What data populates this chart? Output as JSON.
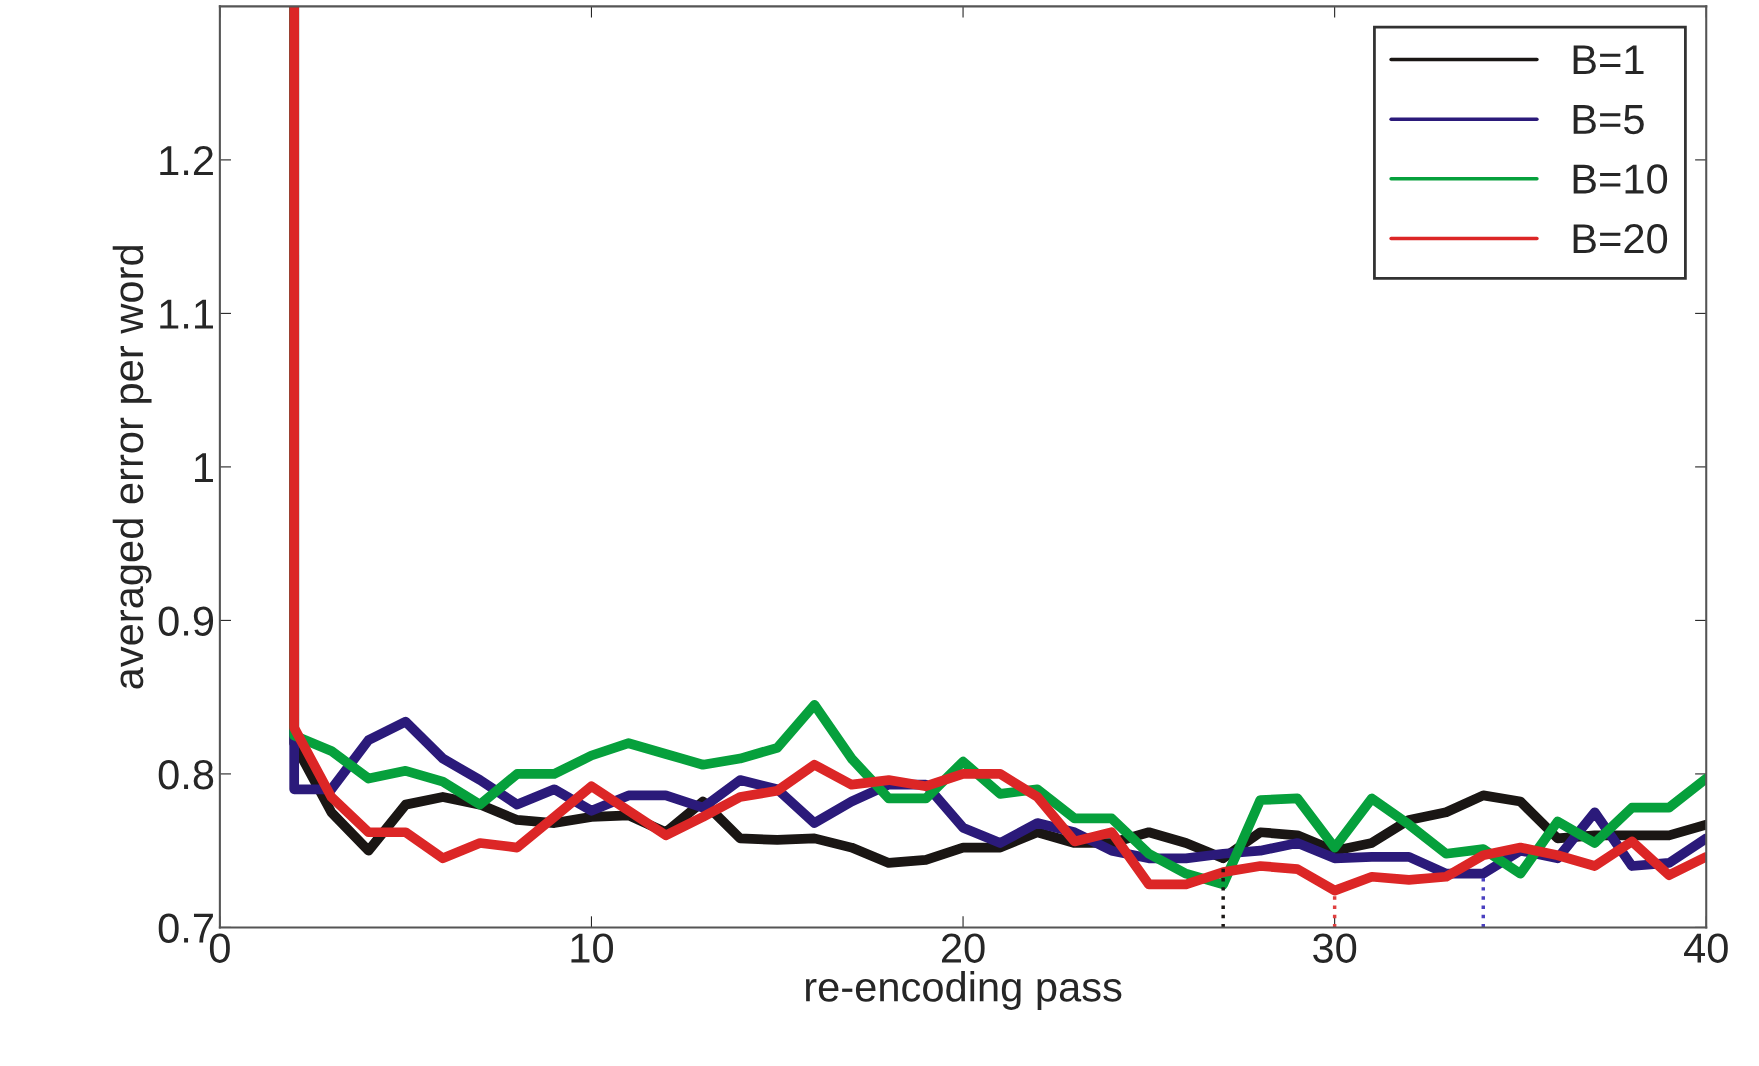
{
  "chart_data": {
    "type": "line",
    "xlabel": "re-encoding pass",
    "ylabel": "averaged error per word",
    "xlim": [
      0,
      40
    ],
    "ylim": [
      0.7,
      1.3
    ],
    "xticks": [
      0,
      10,
      20,
      30,
      40
    ],
    "yticks": [
      0.7,
      0.8,
      0.9,
      1,
      1.1,
      1.2
    ],
    "grid": false,
    "legend": "top right",
    "line_style": "solid",
    "series": [
      {
        "name": "B=1",
        "color": "#1a1614",
        "x": [
          2,
          2,
          3,
          4,
          5,
          6,
          7,
          8,
          9,
          10,
          11,
          12,
          13,
          14,
          15,
          16,
          17,
          18,
          19,
          20,
          21,
          22,
          23,
          24,
          25,
          26,
          27,
          28,
          29,
          30,
          31,
          32,
          33,
          34,
          35,
          36,
          37,
          38,
          39,
          40
        ],
        "values": [
          1.3,
          0.82,
          0.775,
          0.75,
          0.78,
          0.785,
          0.78,
          0.77,
          0.768,
          0.772,
          0.773,
          0.762,
          0.782,
          0.758,
          0.757,
          0.758,
          0.752,
          0.742,
          0.744,
          0.752,
          0.752,
          0.762,
          0.755,
          0.755,
          0.762,
          0.755,
          0.745,
          0.762,
          0.76,
          0.75,
          0.755,
          0.77,
          0.775,
          0.786,
          0.782,
          0.758,
          0.76,
          0.76,
          0.76,
          0.767
        ]
      },
      {
        "name": "B=5",
        "color": "#2b1a7a",
        "x": [
          2,
          2,
          3,
          4,
          5,
          6,
          7,
          8,
          9,
          10,
          11,
          12,
          13,
          14,
          15,
          16,
          17,
          18,
          19,
          20,
          21,
          22,
          23,
          24,
          25,
          26,
          27,
          28,
          29,
          30,
          31,
          32,
          33,
          34,
          35,
          36,
          37,
          38,
          39,
          40
        ],
        "values": [
          1.3,
          0.79,
          0.79,
          0.822,
          0.834,
          0.81,
          0.796,
          0.78,
          0.79,
          0.776,
          0.786,
          0.786,
          0.778,
          0.796,
          0.79,
          0.768,
          0.782,
          0.793,
          0.793,
          0.765,
          0.755,
          0.768,
          0.762,
          0.75,
          0.745,
          0.745,
          0.748,
          0.75,
          0.755,
          0.745,
          0.746,
          0.746,
          0.735,
          0.735,
          0.75,
          0.745,
          0.775,
          0.74,
          0.742,
          0.758
        ]
      },
      {
        "name": "B=10",
        "color": "#06a03c",
        "x": [
          2,
          2,
          3,
          4,
          5,
          6,
          7,
          8,
          9,
          10,
          11,
          12,
          13,
          14,
          15,
          16,
          17,
          18,
          19,
          20,
          21,
          22,
          23,
          24,
          25,
          26,
          27,
          28,
          29,
          30,
          31,
          32,
          33,
          34,
          35,
          36,
          37,
          38,
          39,
          40
        ],
        "values": [
          1.3,
          0.825,
          0.815,
          0.797,
          0.802,
          0.795,
          0.78,
          0.8,
          0.8,
          0.812,
          0.82,
          0.813,
          0.806,
          0.81,
          0.817,
          0.845,
          0.81,
          0.784,
          0.784,
          0.808,
          0.787,
          0.79,
          0.771,
          0.771,
          0.748,
          0.735,
          0.728,
          0.783,
          0.784,
          0.752,
          0.784,
          0.767,
          0.748,
          0.751,
          0.735,
          0.769,
          0.755,
          0.778,
          0.778,
          0.797
        ]
      },
      {
        "name": "B=20",
        "color": "#dc2626",
        "x": [
          2,
          2,
          3,
          4,
          5,
          6,
          7,
          8,
          9,
          10,
          11,
          12,
          13,
          14,
          15,
          16,
          17,
          18,
          19,
          20,
          21,
          22,
          23,
          24,
          25,
          26,
          27,
          28,
          29,
          30,
          31,
          32,
          33,
          34,
          35,
          36,
          37,
          38,
          39,
          40
        ],
        "values": [
          1.3,
          0.83,
          0.785,
          0.762,
          0.762,
          0.745,
          0.755,
          0.752,
          0.772,
          0.792,
          0.776,
          0.76,
          0.772,
          0.785,
          0.789,
          0.806,
          0.793,
          0.796,
          0.792,
          0.8,
          0.8,
          0.785,
          0.756,
          0.762,
          0.728,
          0.728,
          0.736,
          0.74,
          0.738,
          0.724,
          0.733,
          0.731,
          0.733,
          0.747,
          0.752,
          0.747,
          0.74,
          0.756,
          0.734,
          0.746
        ]
      },
      {
        "color": "#1a1614",
        "line_style": "dotted",
        "x": [
          27,
          27
        ],
        "values": [
          0.7,
          0.745
        ]
      },
      {
        "color": "#e04040",
        "line_style": "dotted",
        "x": [
          30,
          30
        ],
        "values": [
          0.7,
          0.724
        ]
      },
      {
        "color": "#4a40c0",
        "line_style": "dotted",
        "x": [
          34,
          34
        ],
        "values": [
          0.7,
          0.735
        ]
      }
    ]
  }
}
